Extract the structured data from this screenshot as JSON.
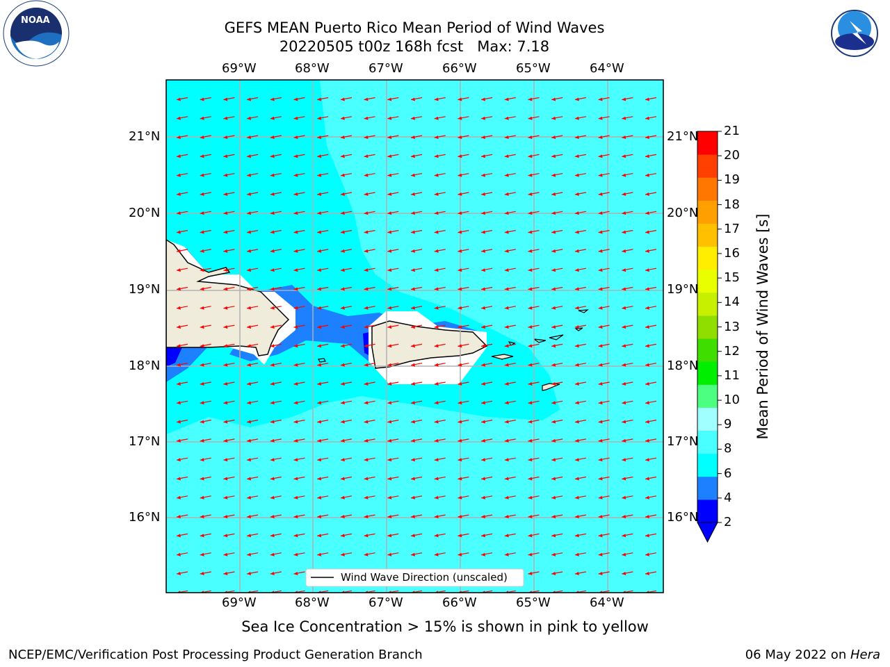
{
  "title": {
    "line1": "GEFS MEAN Puerto Rico Mean Period of Wind Waves",
    "line2": "20220505 t00z 168h fcst   Max: 7.18"
  },
  "logos": {
    "noaa": "NOAA",
    "noaa_ring": "NATIONAL OCEANIC AND ATMOSPHERIC ADMINISTRATION · U.S. DEPARTMENT OF COMMERCE",
    "nws_ring": "NATIONAL WEATHER SERVICE"
  },
  "map": {
    "lon_labels": [
      "69°W",
      "68°W",
      "67°W",
      "66°W",
      "65°W",
      "64°W"
    ],
    "lat_labels": [
      "21°N",
      "20°N",
      "19°N",
      "18°N",
      "17°N",
      "16°N"
    ],
    "legend_label": "Wind Wave Direction (unscaled)",
    "ocean_color": "#00ffff",
    "land_color": "#efecdc",
    "arrow_color": "#ff0000",
    "wind_direction": "from east (westward arrows)"
  },
  "colorbar": {
    "label": "Mean Period of Wind Waves [s]",
    "ticks": [
      "2",
      "4",
      "6",
      "8",
      "9",
      "10",
      "11",
      "12",
      "13",
      "14",
      "15",
      "16",
      "17",
      "18",
      "19",
      "20",
      "21"
    ],
    "colors": [
      "#0000ff",
      "#1c80ff",
      "#00ffff",
      "#49ffff",
      "#a0ffff",
      "#4cff80",
      "#00ee00",
      "#40dd00",
      "#8fde00",
      "#c6f000",
      "#e9ff00",
      "#ffee00",
      "#ffc000",
      "#ffa000",
      "#ff7700",
      "#ff4000",
      "#ff0000"
    ],
    "under_color": "#0000ff"
  },
  "subtitle": "Sea Ice Concentration > 15% is shown in pink to yellow",
  "footer": {
    "left": "NCEP/EMC/Verification Post Processing Product Generation Branch",
    "date": "06 May 2022 on ",
    "machine": "Hera"
  }
}
